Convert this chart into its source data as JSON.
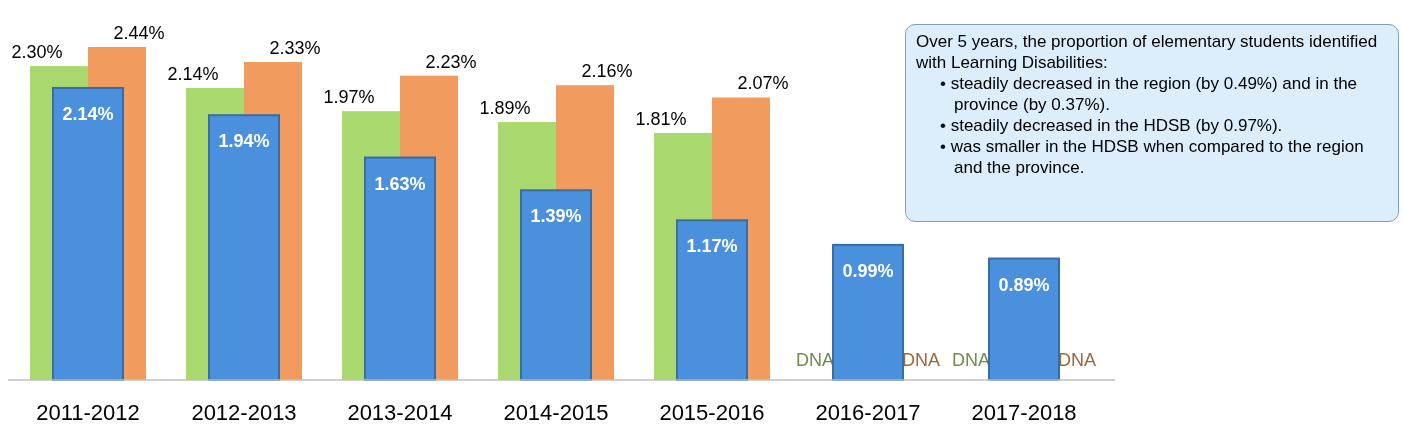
{
  "chart_data": {
    "type": "bar",
    "categories": [
      "2011-2012",
      "2012-2013",
      "2013-2014",
      "2014-2015",
      "2015-2016",
      "2016-2017",
      "2017-2018"
    ],
    "series": [
      {
        "color": "#a9d86e",
        "values": [
          2.3,
          2.14,
          1.97,
          1.89,
          1.81,
          null,
          null
        ],
        "value_labels": [
          "2.30%",
          "2.14%",
          "1.97%",
          "1.89%",
          "1.81%",
          "DNA",
          "DNA"
        ]
      },
      {
        "color": "#f19c5e",
        "values": [
          2.44,
          2.33,
          2.23,
          2.16,
          2.07,
          null,
          null
        ],
        "value_labels": [
          "2.44%",
          "2.33%",
          "2.23%",
          "2.16%",
          "2.07%",
          "DNA",
          "DNA"
        ]
      },
      {
        "color": "#4a90dc",
        "values": [
          2.14,
          1.94,
          1.63,
          1.39,
          1.17,
          0.99,
          0.89
        ],
        "value_labels": [
          "2.14%",
          "1.94%",
          "1.63%",
          "1.39%",
          "1.17%",
          "0.99%",
          "0.89%"
        ]
      }
    ],
    "annotations": [
      "Over 5 years, the proportion of elementary students identified with Learning Disabilities:",
      "• steadily decreased in the region (by 0.49%) and in the province (by 0.37%).",
      "• steadily decreased in the HDSB (by 0.97%).",
      "• was smaller in the HDSB when compared to the region and the province."
    ]
  }
}
